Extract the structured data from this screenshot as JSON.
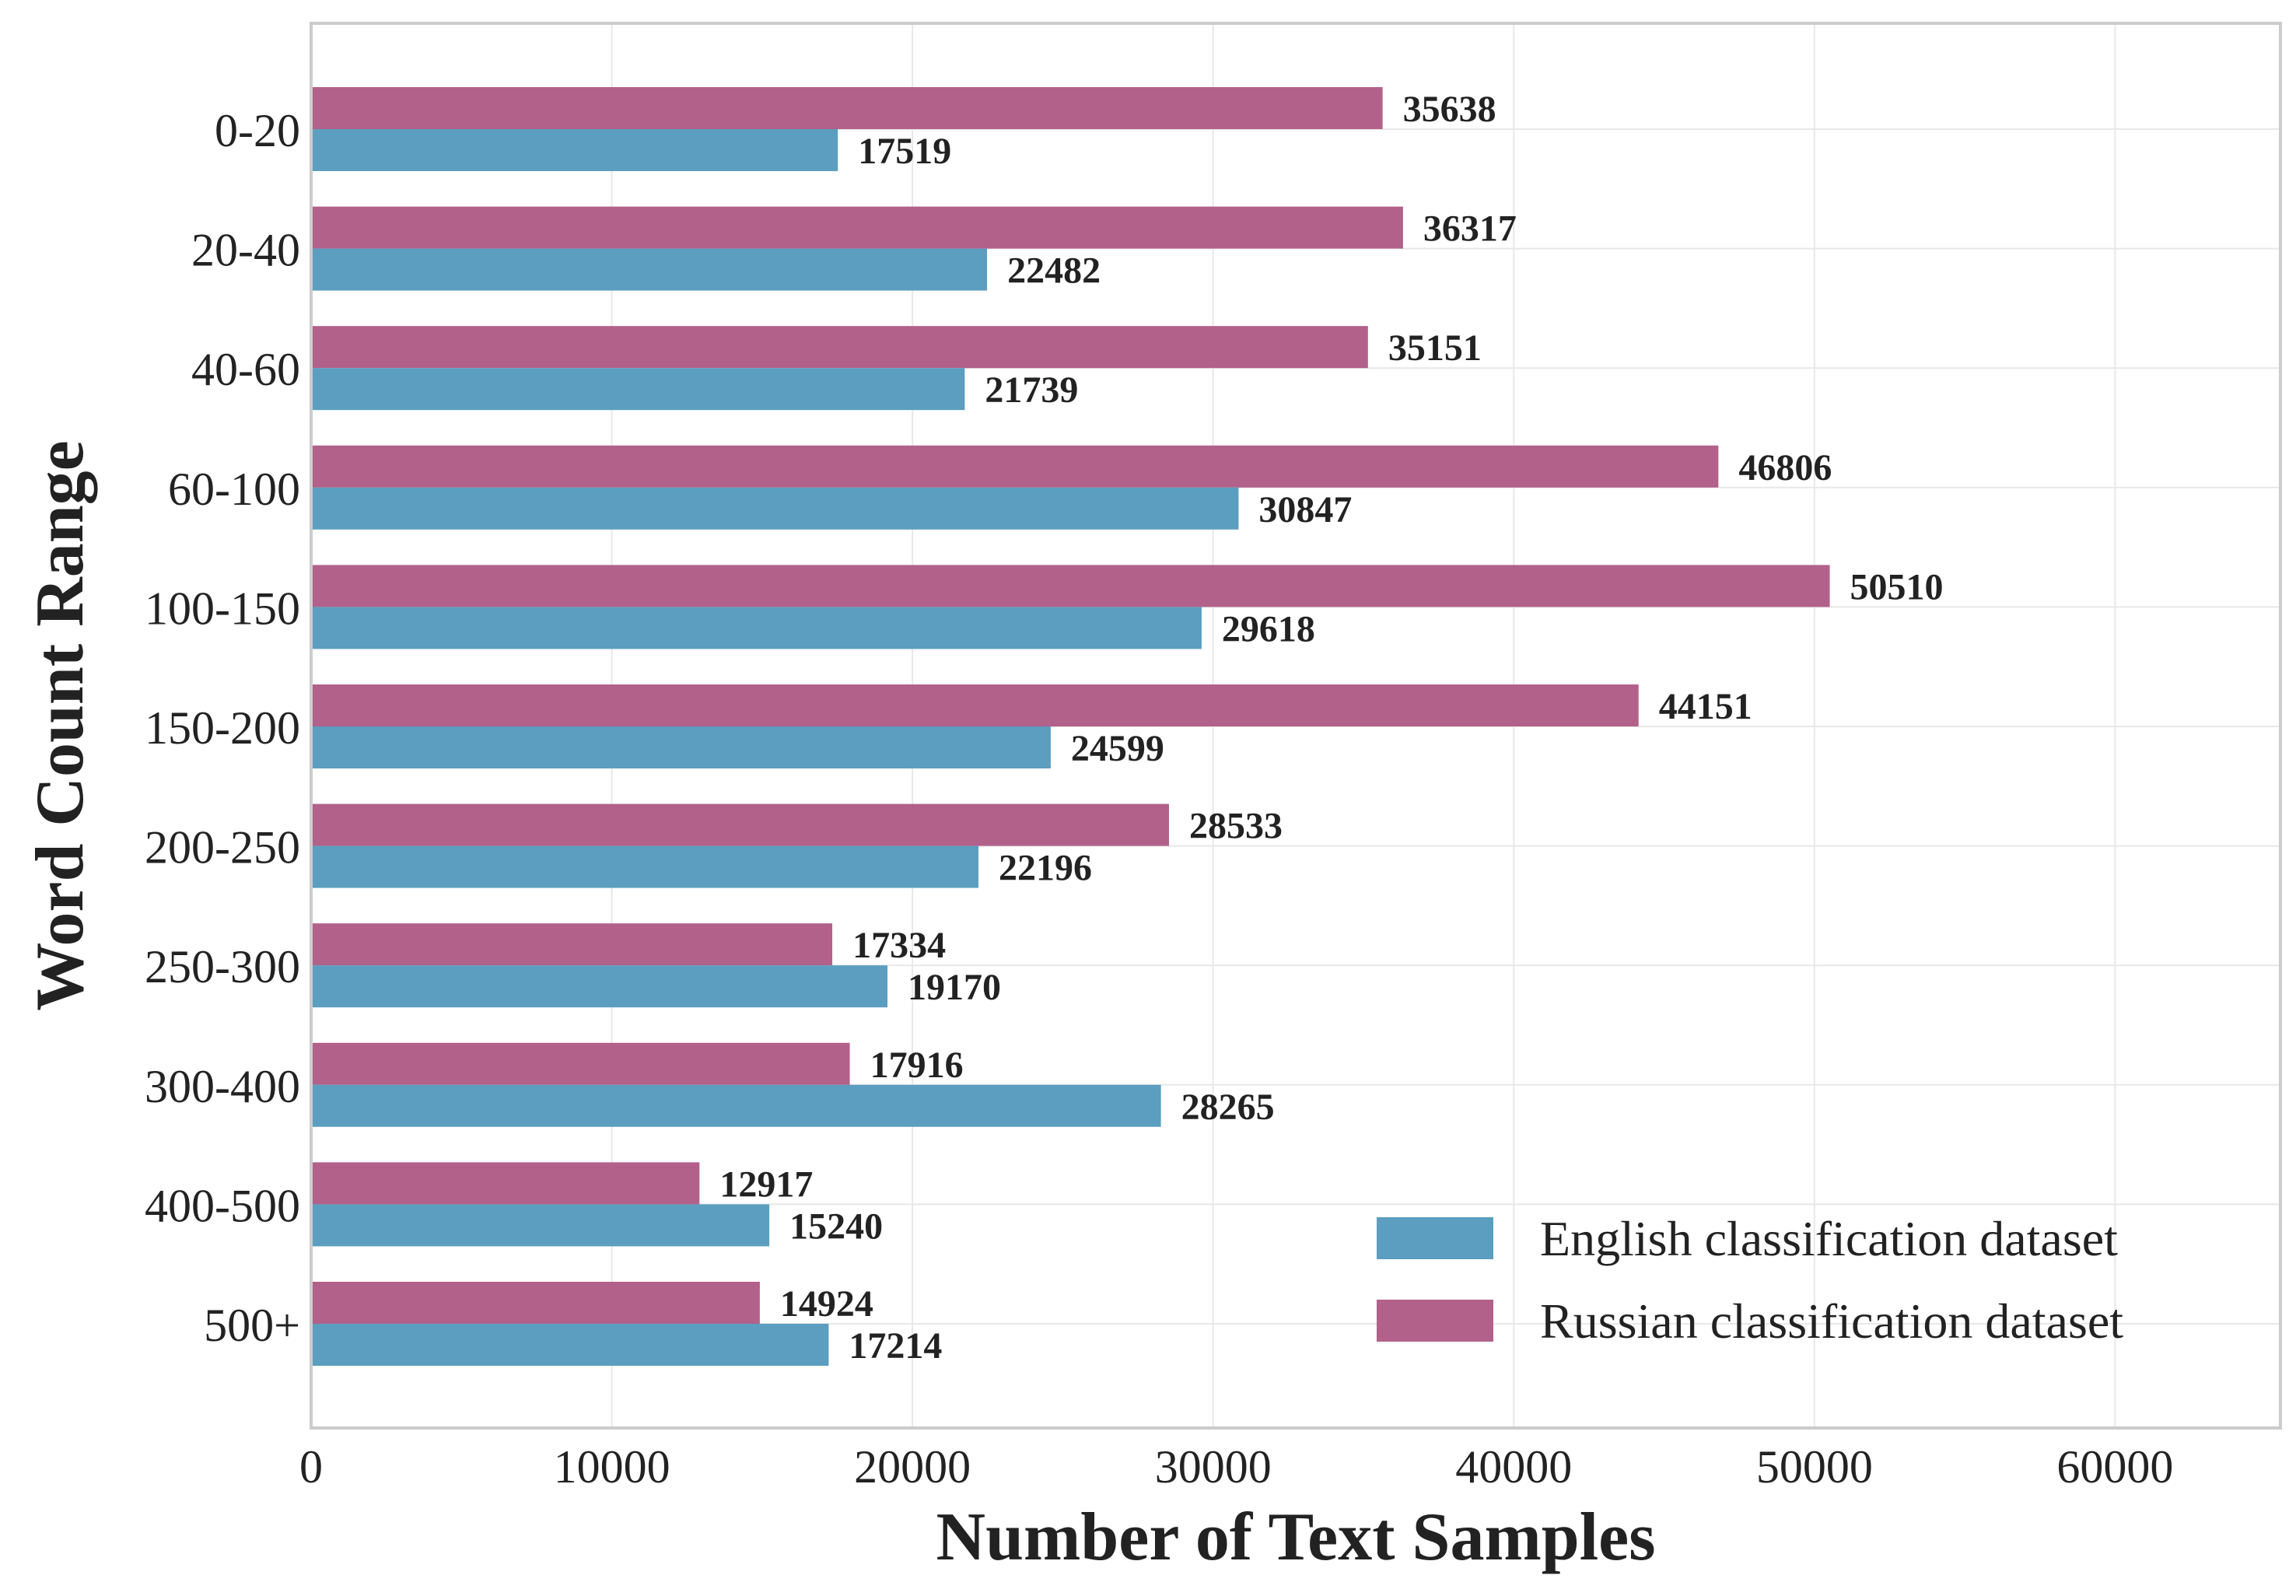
{
  "chart_data": {
    "type": "bar",
    "orientation": "horizontal",
    "title": "",
    "xlabel": "Number of Text Samples",
    "ylabel": "Word Count Range",
    "xlim": [
      0,
      65500
    ],
    "xticks": [
      0,
      10000,
      20000,
      30000,
      40000,
      50000,
      60000
    ],
    "grid": true,
    "legend_position": "bottom-right",
    "categories": [
      "0-20",
      "20-40",
      "40-60",
      "60-100",
      "100-150",
      "150-200",
      "200-250",
      "250-300",
      "300-400",
      "400-500",
      "500+"
    ],
    "series": [
      {
        "name": "English classification dataset",
        "color": "#5B9EC0",
        "values": [
          17519,
          22482,
          21739,
          30847,
          29618,
          24599,
          22196,
          19170,
          28265,
          15240,
          17214
        ]
      },
      {
        "name": "Russian classification dataset",
        "color": "#B2618A",
        "values": [
          35638,
          36317,
          35151,
          46806,
          50510,
          44151,
          28533,
          17334,
          17916,
          12917,
          14924
        ]
      }
    ]
  }
}
